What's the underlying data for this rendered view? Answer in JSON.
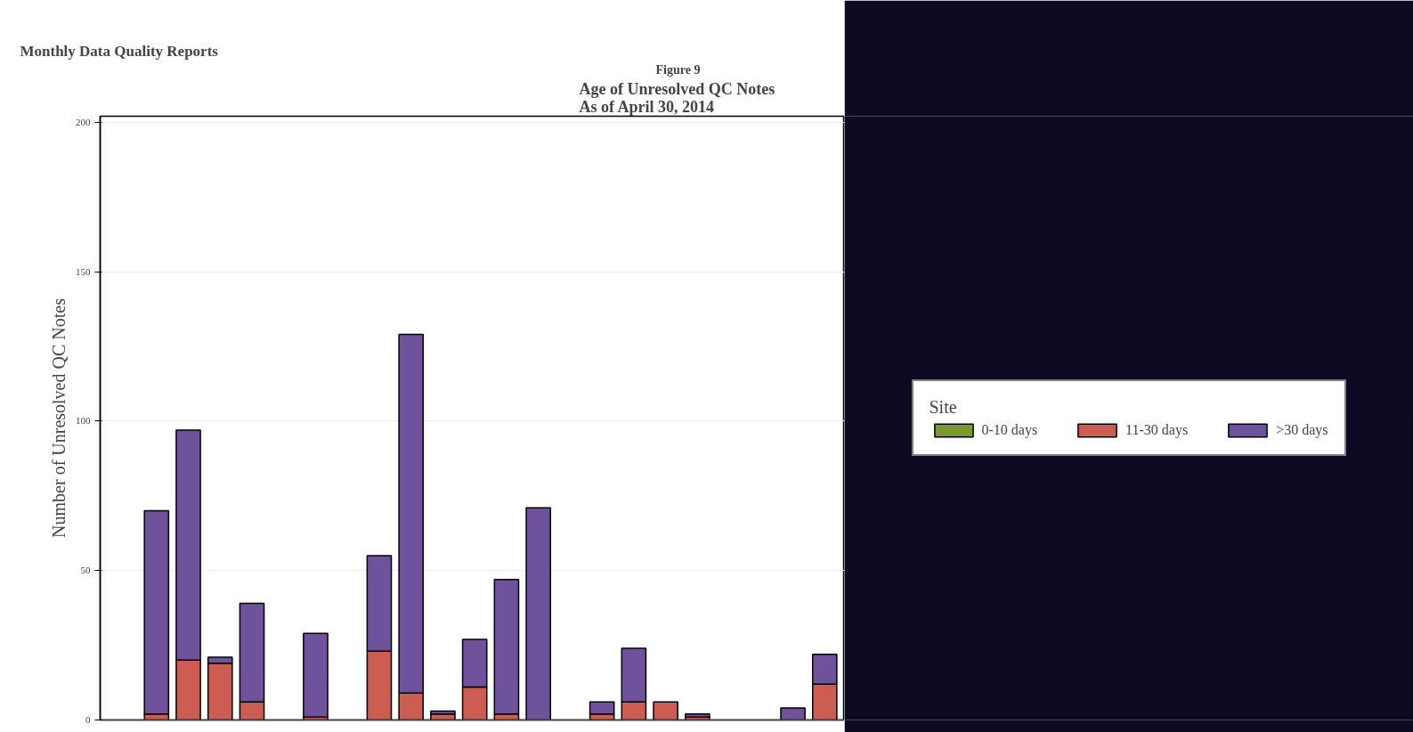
{
  "chart_data": {
    "type": "bar",
    "stacked": true,
    "title": "Figure 9",
    "subtitle": "Age of Unresolved QC Notes\nAs of April 30, 2014",
    "ylabel": "Number of Unresolved QC Notes",
    "legend_title": "Site",
    "annotations": [
      "Monthly Data Quality Reports"
    ],
    "categories": [
      null,
      null,
      null,
      null,
      null,
      null,
      null,
      null,
      null,
      null,
      null,
      null,
      null,
      null,
      null,
      null,
      null,
      null,
      null,
      null,
      null,
      null,
      null
    ],
    "series": [
      {
        "name": "0-10 days",
        "color": "#7b9a2e",
        "values": [
          0,
          0,
          0,
          0,
          0,
          0,
          0,
          0,
          0,
          0,
          0,
          0,
          0,
          0,
          0,
          0,
          0,
          0,
          0,
          0,
          0,
          0,
          0
        ]
      },
      {
        "name": "11-30 days",
        "color": "#cd5c52",
        "values": [
          0,
          2,
          20,
          19,
          6,
          0,
          1,
          0,
          23,
          9,
          2,
          11,
          2,
          0,
          0,
          2,
          6,
          6,
          1,
          0,
          0,
          0,
          12
        ]
      },
      {
        "name": ">30 days",
        "color": "#6e529b",
        "values": [
          0,
          68,
          77,
          2,
          33,
          0,
          28,
          0,
          32,
          120,
          1,
          16,
          45,
          71,
          0,
          4,
          18,
          0,
          1,
          0,
          0,
          4,
          10
        ]
      }
    ],
    "ylim": [
      0,
      202
    ],
    "yticks": [
      0,
      50,
      100,
      150,
      200
    ],
    "grid": "y",
    "legend": "right"
  }
}
